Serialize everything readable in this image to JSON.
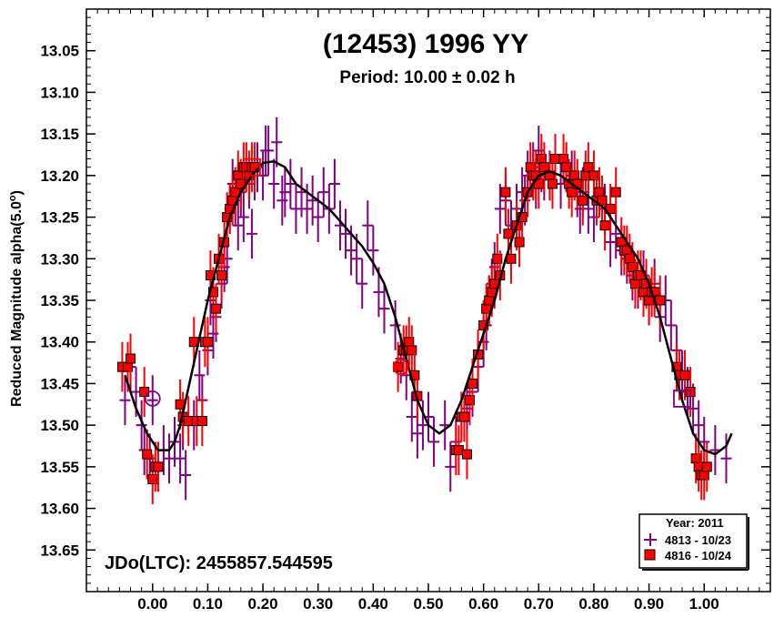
{
  "chart_data": {
    "type": "scatter",
    "title": "(12453) 1996 YY",
    "subtitle": "Period: 10.00 ± 0.02 h",
    "ylabel": "Reduced Magnitude alpha(5.0°)",
    "ylabel_main": "Reduced Magnitude alpha(5.0",
    "ylabel_suffix": ")",
    "ylabel_degree": "o",
    "xlabel": "",
    "epoch_label": "JDo(LTC): 2455857.544595",
    "xlim": [
      -0.12,
      1.12
    ],
    "ylim": [
      13.7,
      13.0
    ],
    "y_inverted": true,
    "xticks": [
      0.0,
      0.1,
      0.2,
      0.3,
      0.4,
      0.5,
      0.6,
      0.7,
      0.8,
      0.9,
      1.0
    ],
    "xtick_labels": [
      "0.00",
      "0.10",
      "0.20",
      "0.30",
      "0.40",
      "0.50",
      "0.60",
      "0.70",
      "0.80",
      "0.90",
      "1.00"
    ],
    "yticks": [
      13.05,
      13.1,
      13.15,
      13.2,
      13.25,
      13.3,
      13.35,
      13.4,
      13.45,
      13.5,
      13.55,
      13.6,
      13.65
    ],
    "ytick_labels": [
      "13.05",
      "13.10",
      "13.15",
      "13.20",
      "13.25",
      "13.30",
      "13.35",
      "13.40",
      "13.45",
      "13.50",
      "13.55",
      "13.60",
      "13.65"
    ],
    "grid": false,
    "legend": {
      "placement": "bottom-right",
      "title": "Year: 2011",
      "entries": [
        {
          "label": "4813 - 10/23",
          "marker": "cross",
          "color": "#800080"
        },
        {
          "label": "4816 - 10/24",
          "marker": "square",
          "color": "#ff0000"
        }
      ]
    },
    "series": [
      {
        "name": "4813 - 10/23",
        "marker": "cross",
        "color": "#800080",
        "x": [
          -0.05,
          -0.04,
          -0.03,
          -0.02,
          -0.015,
          -0.005,
          0.0,
          0.01,
          0.02,
          0.03,
          0.04,
          0.05,
          0.055,
          0.06,
          0.075,
          0.085,
          0.09,
          0.1,
          0.105,
          0.11,
          0.115,
          0.125,
          0.13,
          0.135,
          0.14,
          0.145,
          0.15,
          0.155,
          0.16,
          0.165,
          0.175,
          0.18,
          0.185,
          0.19,
          0.2,
          0.205,
          0.21,
          0.22,
          0.225,
          0.235,
          0.24,
          0.25,
          0.26,
          0.27,
          0.28,
          0.29,
          0.3,
          0.31,
          0.32,
          0.33,
          0.34,
          0.35,
          0.36,
          0.37,
          0.38,
          0.39,
          0.4,
          0.41,
          0.42,
          0.44,
          0.45,
          0.46,
          0.47,
          0.48,
          0.49,
          0.5,
          0.51,
          0.53,
          0.54,
          0.55,
          0.56,
          0.57,
          0.58,
          0.59,
          0.6,
          0.605,
          0.61,
          0.615,
          0.62,
          0.63,
          0.64,
          0.65,
          0.66,
          0.67,
          0.675,
          0.68,
          0.69,
          0.695,
          0.7,
          0.705,
          0.71,
          0.72,
          0.73,
          0.74,
          0.75,
          0.76,
          0.77,
          0.775,
          0.78,
          0.79,
          0.8,
          0.81,
          0.82,
          0.83,
          0.84,
          0.85,
          0.86,
          0.87,
          0.88,
          0.89,
          0.9,
          0.91,
          0.92,
          0.93,
          0.94,
          0.95,
          0.96,
          0.97,
          0.98,
          0.99,
          1.0,
          1.02,
          1.04
        ],
        "y": [
          13.47,
          13.43,
          13.46,
          13.5,
          13.53,
          13.54,
          13.47,
          13.55,
          13.53,
          13.54,
          13.52,
          13.54,
          13.5,
          13.56,
          13.5,
          13.44,
          13.47,
          13.41,
          13.35,
          13.39,
          13.37,
          13.33,
          13.31,
          13.3,
          13.24,
          13.21,
          13.23,
          13.26,
          13.22,
          13.25,
          13.21,
          13.27,
          13.2,
          13.19,
          13.2,
          13.17,
          13.17,
          13.21,
          13.16,
          13.23,
          13.22,
          13.21,
          13.24,
          13.22,
          13.24,
          13.23,
          13.25,
          13.22,
          13.24,
          13.21,
          13.26,
          13.27,
          13.29,
          13.3,
          13.33,
          13.26,
          13.29,
          13.34,
          13.36,
          13.38,
          13.42,
          13.44,
          13.49,
          13.51,
          13.5,
          13.49,
          13.52,
          13.5,
          13.55,
          13.52,
          13.49,
          13.48,
          13.46,
          13.43,
          13.4,
          13.38,
          13.35,
          13.33,
          13.31,
          13.24,
          13.23,
          13.26,
          13.24,
          13.22,
          13.23,
          13.2,
          13.19,
          13.21,
          13.17,
          13.19,
          13.2,
          13.2,
          13.18,
          13.21,
          13.19,
          13.2,
          13.22,
          13.24,
          13.22,
          13.24,
          13.25,
          13.22,
          13.24,
          13.28,
          13.27,
          13.29,
          13.3,
          13.32,
          13.33,
          13.32,
          13.35,
          13.33,
          13.37,
          13.35,
          13.38,
          13.41,
          13.44,
          13.46,
          13.48,
          13.5,
          13.52,
          13.53,
          13.54
        ]
      },
      {
        "name": "4816 - 10/24",
        "marker": "square",
        "color": "#ff0000",
        "x": [
          -0.055,
          -0.045,
          -0.04,
          -0.015,
          -0.01,
          0.0,
          0.005,
          0.01,
          0.05,
          0.055,
          0.065,
          0.075,
          0.08,
          0.09,
          0.095,
          0.1,
          0.105,
          0.11,
          0.115,
          0.12,
          0.125,
          0.13,
          0.135,
          0.14,
          0.145,
          0.15,
          0.155,
          0.16,
          0.165,
          0.17,
          0.175,
          0.18,
          0.185,
          0.445,
          0.455,
          0.46,
          0.465,
          0.47,
          0.475,
          0.48,
          0.55,
          0.555,
          0.56,
          0.565,
          0.57,
          0.575,
          0.58,
          0.59,
          0.6,
          0.605,
          0.61,
          0.615,
          0.62,
          0.625,
          0.63,
          0.64,
          0.645,
          0.65,
          0.66,
          0.665,
          0.67,
          0.68,
          0.685,
          0.69,
          0.695,
          0.7,
          0.705,
          0.71,
          0.72,
          0.725,
          0.73,
          0.745,
          0.75,
          0.755,
          0.76,
          0.765,
          0.77,
          0.78,
          0.785,
          0.79,
          0.8,
          0.805,
          0.81,
          0.815,
          0.82,
          0.83,
          0.84,
          0.85,
          0.855,
          0.86,
          0.865,
          0.87,
          0.875,
          0.88,
          0.885,
          0.89,
          0.895,
          0.9,
          0.905,
          0.91,
          0.92,
          0.95,
          0.955,
          0.965,
          0.975,
          0.985,
          0.99,
          0.995,
          1.0,
          1.005
        ],
        "y": [
          13.43,
          13.43,
          13.42,
          13.46,
          13.535,
          13.565,
          13.55,
          13.55,
          13.475,
          13.49,
          13.495,
          13.4,
          13.495,
          13.495,
          13.4,
          13.4,
          13.32,
          13.34,
          13.36,
          13.3,
          13.32,
          13.28,
          13.25,
          13.24,
          13.23,
          13.22,
          13.2,
          13.21,
          13.19,
          13.19,
          13.2,
          13.19,
          13.19,
          13.43,
          13.41,
          13.41,
          13.4,
          13.41,
          13.44,
          13.465,
          13.53,
          13.53,
          13.49,
          13.49,
          13.535,
          13.47,
          13.45,
          13.415,
          13.38,
          13.36,
          13.35,
          13.34,
          13.33,
          13.3,
          13.32,
          13.22,
          13.27,
          13.3,
          13.26,
          13.28,
          13.25,
          13.22,
          13.19,
          13.2,
          13.2,
          13.21,
          13.18,
          13.19,
          13.2,
          13.21,
          13.18,
          13.18,
          13.19,
          13.21,
          13.22,
          13.2,
          13.21,
          13.23,
          13.2,
          13.19,
          13.2,
          13.23,
          13.22,
          13.23,
          13.26,
          13.24,
          13.22,
          13.28,
          13.29,
          13.29,
          13.3,
          13.31,
          13.33,
          13.32,
          13.32,
          13.34,
          13.33,
          13.35,
          13.34,
          13.34,
          13.35,
          13.43,
          13.44,
          13.44,
          13.46,
          13.54,
          13.55,
          13.56,
          13.56,
          13.55
        ]
      }
    ],
    "fit_curve": {
      "color": "#000000",
      "x": [
        -0.05,
        -0.03,
        -0.01,
        0.0,
        0.01,
        0.02,
        0.03,
        0.04,
        0.05,
        0.06,
        0.08,
        0.1,
        0.12,
        0.14,
        0.16,
        0.18,
        0.2,
        0.22,
        0.24,
        0.26,
        0.28,
        0.3,
        0.32,
        0.34,
        0.36,
        0.38,
        0.4,
        0.42,
        0.44,
        0.46,
        0.48,
        0.5,
        0.52,
        0.54,
        0.56,
        0.58,
        0.6,
        0.62,
        0.64,
        0.66,
        0.68,
        0.7,
        0.72,
        0.74,
        0.76,
        0.78,
        0.8,
        0.82,
        0.84,
        0.86,
        0.88,
        0.9,
        0.92,
        0.94,
        0.96,
        0.98,
        1.0,
        1.02,
        1.04,
        1.05
      ],
      "y": [
        13.44,
        13.48,
        13.51,
        13.52,
        13.53,
        13.53,
        13.53,
        13.52,
        13.5,
        13.47,
        13.41,
        13.35,
        13.3,
        13.25,
        13.22,
        13.2,
        13.185,
        13.183,
        13.19,
        13.21,
        13.22,
        13.23,
        13.24,
        13.255,
        13.27,
        13.285,
        13.305,
        13.33,
        13.37,
        13.42,
        13.47,
        13.5,
        13.51,
        13.5,
        13.47,
        13.43,
        13.39,
        13.35,
        13.3,
        13.26,
        13.22,
        13.2,
        13.195,
        13.2,
        13.21,
        13.22,
        13.23,
        13.24,
        13.26,
        13.28,
        13.3,
        13.33,
        13.37,
        13.42,
        13.47,
        13.51,
        13.53,
        13.535,
        13.525,
        13.51
      ]
    },
    "annotations": [
      {
        "x": 0.0,
        "y": 13.468,
        "marker": "circle",
        "color": "#800080"
      },
      {
        "x": 0.18,
        "y": 13.19,
        "marker": "open-square",
        "color": "#ff0000"
      },
      {
        "x": 0.45,
        "y": 13.43,
        "marker": "circle",
        "color": "#ff0000"
      },
      {
        "x": 0.96,
        "y": 13.468,
        "marker": "open-square",
        "color": "#800080"
      }
    ]
  }
}
